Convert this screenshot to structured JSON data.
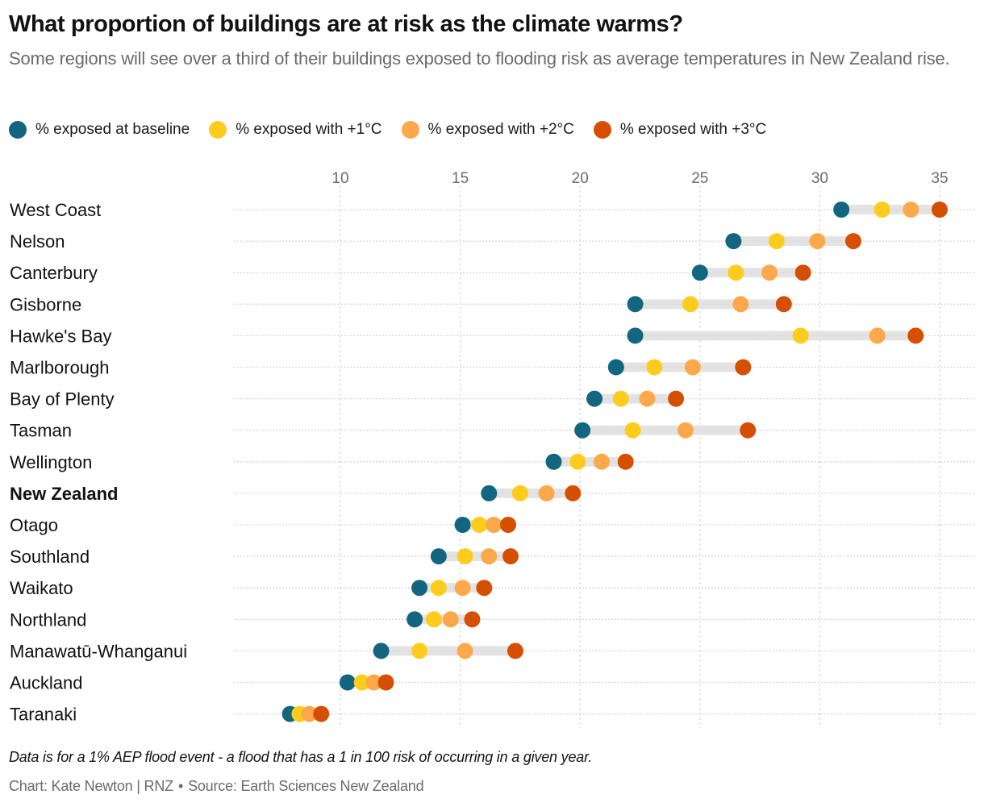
{
  "title": "What proportion of buildings are at risk as the climate warms?",
  "subtitle": "Some regions will see over a third of their buildings exposed to flooding risk as average temperatures in New Zealand rise.",
  "footnote": "Data is for a 1% AEP flood event - a flood that has a 1 in 100 risk of occurring in a given year.",
  "credit": {
    "chart": "Chart: Kate Newton | RNZ",
    "separator": "•",
    "source": "Source: Earth Sciences New Zealand"
  },
  "chart_data": {
    "type": "dot-plot",
    "title": "What proportion of buildings are at risk as the climate warms?",
    "xlabel": "",
    "ylabel": "",
    "xlim": [
      5.5,
      36
    ],
    "x_ticks": [
      10,
      15,
      20,
      25,
      30,
      35
    ],
    "grid": true,
    "legend_position": "top-left",
    "highlight_category": "New Zealand",
    "series": [
      {
        "name": "% exposed at baseline",
        "color": "#12667f"
      },
      {
        "name": "% exposed with +1°C",
        "color": "#ffcc1d"
      },
      {
        "name": "% exposed with +2°C",
        "color": "#fda84b"
      },
      {
        "name": "% exposed with +3°C",
        "color": "#d64f00"
      }
    ],
    "connector_color": "#e3e3e3",
    "categories": [
      "West Coast",
      "Nelson",
      "Canterbury",
      "Gisborne",
      "Hawke's Bay",
      "Marlborough",
      "Bay of Plenty",
      "Tasman",
      "Wellington",
      "New Zealand",
      "Otago",
      "Southland",
      "Waikato",
      "Northland",
      "Manawatū-Whanganui",
      "Auckland",
      "Taranaki"
    ],
    "rows": [
      {
        "region": "West Coast",
        "values": [
          30.9,
          32.6,
          33.8,
          35.0
        ]
      },
      {
        "region": "Nelson",
        "values": [
          26.4,
          28.2,
          29.9,
          31.4
        ]
      },
      {
        "region": "Canterbury",
        "values": [
          25.0,
          26.5,
          27.9,
          29.3
        ]
      },
      {
        "region": "Gisborne",
        "values": [
          22.3,
          24.6,
          26.7,
          28.5
        ]
      },
      {
        "region": "Hawke's Bay",
        "values": [
          22.3,
          29.2,
          32.4,
          34.0
        ]
      },
      {
        "region": "Marlborough",
        "values": [
          21.5,
          23.1,
          24.7,
          26.8
        ]
      },
      {
        "region": "Bay of Plenty",
        "values": [
          20.6,
          21.7,
          22.8,
          24.0
        ]
      },
      {
        "region": "Tasman",
        "values": [
          20.1,
          22.2,
          24.4,
          27.0
        ]
      },
      {
        "region": "Wellington",
        "values": [
          18.9,
          19.9,
          20.9,
          21.9
        ]
      },
      {
        "region": "New Zealand",
        "values": [
          16.2,
          17.5,
          18.6,
          19.7
        ]
      },
      {
        "region": "Otago",
        "values": [
          15.1,
          15.8,
          16.4,
          17.0
        ]
      },
      {
        "region": "Southland",
        "values": [
          14.1,
          15.2,
          16.2,
          17.1
        ]
      },
      {
        "region": "Waikato",
        "values": [
          13.3,
          14.1,
          15.1,
          16.0
        ]
      },
      {
        "region": "Northland",
        "values": [
          13.1,
          13.9,
          14.6,
          15.5
        ]
      },
      {
        "region": "Manawatū-Whanganui",
        "values": [
          11.7,
          13.3,
          15.2,
          17.3
        ]
      },
      {
        "region": "Auckland",
        "values": [
          10.3,
          10.9,
          11.4,
          11.9
        ]
      },
      {
        "region": "Taranaki",
        "values": [
          7.9,
          8.3,
          8.7,
          9.2
        ]
      }
    ]
  }
}
